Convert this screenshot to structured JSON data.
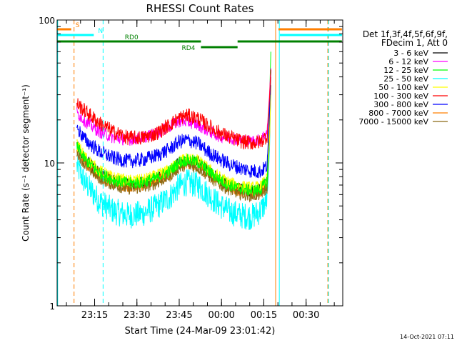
{
  "chart_data": {
    "type": "line",
    "title": "RHESSI Count Rates",
    "xlabel": "Start Time (24-Mar-09 23:01:42)",
    "ylabel": "Count Rate (s⁻¹ detector segment⁻¹)",
    "yscale": "log",
    "ylim": [
      1,
      100
    ],
    "xlim": [
      "23:01:42",
      "00:43:00"
    ],
    "y_ticks": [
      "1",
      "10",
      "100"
    ],
    "x_ticks": [
      "23:15",
      "23:30",
      "23:45",
      "00:00",
      "00:15",
      "00:30"
    ],
    "x_tick_minutes": [
      13.3,
      28.3,
      43.3,
      58.3,
      73.3,
      88.3
    ],
    "grid": false,
    "legend_position": "right",
    "legend_header": [
      "Det 1f,3f,4f,5f,6f,9f,",
      "FDecim 1, Att 0"
    ],
    "timestamp": "14-Oct-2021 07:11",
    "x_minutes": [
      7.0,
      10.0,
      15.0,
      20.0,
      25.0,
      30.0,
      35.0,
      40.0,
      43.0,
      46.0,
      50.0,
      53.0,
      57.0,
      61.0,
      65.0,
      69.0,
      72.0,
      74.5,
      75.3,
      75.8
    ],
    "series": [
      {
        "name": "3 - 6 keV",
        "color": "#000000",
        "values": [
          13.0,
          10.5,
          8.5,
          7.6,
          7.2,
          7.3,
          7.8,
          8.8,
          10.0,
          10.5,
          10.1,
          9.0,
          7.8,
          7.0,
          6.6,
          6.4,
          6.5,
          7.5,
          20.0,
          45.0
        ]
      },
      {
        "name": "6 - 12 keV",
        "color": "#ff00ff",
        "values": [
          22.5,
          19.5,
          16.5,
          15.0,
          14.5,
          15.0,
          16.0,
          18.0,
          19.5,
          19.5,
          18.5,
          17.0,
          15.5,
          15.0,
          14.5,
          14.2,
          14.5,
          16.5,
          30.0,
          46.0
        ]
      },
      {
        "name": "12 - 25 keV",
        "color": "#00ff00",
        "values": [
          13.0,
          10.5,
          8.5,
          7.6,
          7.2,
          7.3,
          7.8,
          8.8,
          10.0,
          10.5,
          10.1,
          9.0,
          7.8,
          7.0,
          6.6,
          6.4,
          6.5,
          7.5,
          25.0,
          60.0
        ]
      },
      {
        "name": "25 - 50 keV",
        "color": "#00ffff",
        "values": [
          9.5,
          7.2,
          5.4,
          4.6,
          4.3,
          4.4,
          4.9,
          5.8,
          6.8,
          7.3,
          7.0,
          6.2,
          5.2,
          4.6,
          4.3,
          4.2,
          4.6,
          5.5,
          12.0,
          30.0
        ]
      },
      {
        "name": "50 - 100 keV",
        "color": "#ffff00",
        "values": [
          13.5,
          11.0,
          8.8,
          7.9,
          7.5,
          7.6,
          8.1,
          9.0,
          10.2,
          10.8,
          10.4,
          9.3,
          8.1,
          7.3,
          6.9,
          6.7,
          6.8,
          7.8,
          14.0,
          30.0
        ]
      },
      {
        "name": "100 - 300 keV",
        "color": "#ff0000",
        "values": [
          26.0,
          23.0,
          19.0,
          16.5,
          15.0,
          15.0,
          16.0,
          18.5,
          20.5,
          21.5,
          20.5,
          18.5,
          16.5,
          15.2,
          14.2,
          13.8,
          14.0,
          15.5,
          28.0,
          45.0
        ]
      },
      {
        "name": "300 - 800 keV",
        "color": "#0000ff",
        "values": [
          17.5,
          14.5,
          12.0,
          10.8,
          10.3,
          10.5,
          11.2,
          12.5,
          14.0,
          14.5,
          13.7,
          12.2,
          10.8,
          9.8,
          9.2,
          8.8,
          8.7,
          9.5,
          22.0,
          45.0
        ]
      },
      {
        "name": "800 - 7000 keV",
        "color": "#ff7f00",
        "values": [
          12.5,
          10.0,
          8.1,
          7.3,
          6.9,
          7.0,
          7.5,
          8.4,
          9.5,
          10.0,
          9.6,
          8.6,
          7.5,
          6.8,
          6.4,
          6.2,
          6.3,
          7.0,
          16.0,
          40.0
        ]
      },
      {
        "name": "7000 - 15000 keV",
        "color": "#8b6914",
        "values": [
          12.0,
          9.6,
          7.8,
          7.0,
          6.6,
          6.7,
          7.2,
          8.1,
          9.2,
          9.7,
          9.3,
          8.3,
          7.2,
          6.5,
          6.1,
          5.9,
          6.0,
          6.7,
          14.0,
          35.0
        ]
      }
    ],
    "annotations": [
      {
        "label": "S",
        "color": "#ff7f00",
        "kind": "bar",
        "x_start": 0.0,
        "x_end": 5.0,
        "y": 85
      },
      {
        "label": "",
        "color": "#ff7f00",
        "kind": "bar",
        "x_start": 78.5,
        "x_end": 101.0,
        "y": 85
      },
      {
        "label": "N",
        "color": "#00ffff",
        "kind": "bar",
        "x_start": 0.0,
        "x_end": 13.0,
        "y": 77
      },
      {
        "label": "",
        "color": "#00ffff",
        "kind": "bar",
        "x_start": 79.0,
        "x_end": 101.0,
        "y": 77
      },
      {
        "label": "RD0",
        "color": "#008000",
        "kind": "bar",
        "x_start": 0.0,
        "x_end": 51.0,
        "y": 69
      },
      {
        "label": "",
        "color": "#008000",
        "kind": "bar",
        "x_start": 64.0,
        "x_end": 101.0,
        "y": 69
      },
      {
        "label": "RD4",
        "color": "#008000",
        "kind": "bar",
        "x_start": 51.0,
        "x_end": 64.0,
        "y": 62
      }
    ],
    "vlines": [
      {
        "x": 0.2,
        "color": "#00ffff",
        "dashed": false
      },
      {
        "x": 6.0,
        "color": "#ff7f00",
        "dashed": true
      },
      {
        "x": 16.3,
        "color": "#00ffff",
        "dashed": true
      },
      {
        "x": 77.5,
        "color": "#ff7f00",
        "dashed": false
      },
      {
        "x": 78.8,
        "color": "#00ffff",
        "dashed": false
      },
      {
        "x": 96.0,
        "color": "#ff7f00",
        "dashed": true
      },
      {
        "x": 96.3,
        "color": "#00ffff",
        "dashed": true
      }
    ]
  }
}
